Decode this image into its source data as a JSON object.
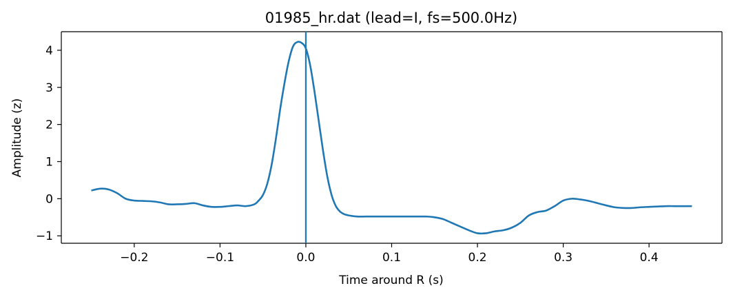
{
  "chart_data": {
    "type": "line",
    "title": "01985_hr.dat (lead=I, fs=500.0Hz)",
    "xlabel": "Time around R (s)",
    "ylabel": "Amplitude (z)",
    "xlim": [
      -0.285,
      0.485
    ],
    "ylim": [
      -1.2,
      4.5
    ],
    "x_ticks": [
      -0.2,
      -0.1,
      0.0,
      0.1,
      0.2,
      0.3,
      0.4
    ],
    "x_tick_labels": [
      "−0.2",
      "−0.1",
      "0.0",
      "0.1",
      "0.2",
      "0.3",
      "0.4"
    ],
    "y_ticks": [
      -1,
      0,
      1,
      2,
      3,
      4
    ],
    "y_tick_labels": [
      "−1",
      "0",
      "1",
      "2",
      "3",
      "4"
    ],
    "grid": false,
    "line_color": "#1f77b4",
    "vline_x": 0.0,
    "series": [
      {
        "x": [
          -0.25,
          -0.24,
          -0.23,
          -0.22,
          -0.21,
          -0.2,
          -0.19,
          -0.18,
          -0.17,
          -0.16,
          -0.15,
          -0.14,
          -0.13,
          -0.12,
          -0.11,
          -0.1,
          -0.09,
          -0.08,
          -0.07,
          -0.06,
          -0.055,
          -0.05,
          -0.045,
          -0.04,
          -0.035,
          -0.03,
          -0.025,
          -0.02,
          -0.015,
          -0.01,
          -0.005,
          0.0,
          0.005,
          0.01,
          0.015,
          0.02,
          0.025,
          0.03,
          0.035,
          0.04,
          0.045,
          0.05,
          0.06,
          0.07,
          0.08,
          0.09,
          0.1,
          0.11,
          0.12,
          0.13,
          0.14,
          0.15,
          0.16,
          0.17,
          0.18,
          0.19,
          0.2,
          0.21,
          0.22,
          0.23,
          0.24,
          0.25,
          0.26,
          0.27,
          0.28,
          0.29,
          0.3,
          0.31,
          0.32,
          0.33,
          0.34,
          0.35,
          0.36,
          0.37,
          0.38,
          0.39,
          0.4,
          0.41,
          0.42,
          0.43,
          0.44,
          0.45
        ],
        "y": [
          0.22,
          0.27,
          0.25,
          0.15,
          0.0,
          -0.05,
          -0.06,
          -0.07,
          -0.1,
          -0.15,
          -0.15,
          -0.14,
          -0.12,
          -0.18,
          -0.22,
          -0.22,
          -0.2,
          -0.18,
          -0.2,
          -0.15,
          -0.05,
          0.1,
          0.4,
          0.9,
          1.6,
          2.4,
          3.1,
          3.7,
          4.1,
          4.22,
          4.2,
          4.05,
          3.6,
          2.9,
          2.1,
          1.3,
          0.6,
          0.1,
          -0.2,
          -0.35,
          -0.42,
          -0.45,
          -0.48,
          -0.48,
          -0.48,
          -0.48,
          -0.48,
          -0.48,
          -0.48,
          -0.48,
          -0.48,
          -0.5,
          -0.55,
          -0.65,
          -0.75,
          -0.85,
          -0.93,
          -0.93,
          -0.88,
          -0.85,
          -0.78,
          -0.65,
          -0.45,
          -0.36,
          -0.32,
          -0.2,
          -0.05,
          0.0,
          -0.02,
          -0.06,
          -0.12,
          -0.18,
          -0.23,
          -0.25,
          -0.25,
          -0.23,
          -0.22,
          -0.21,
          -0.2,
          -0.2,
          -0.2,
          -0.2
        ]
      }
    ]
  }
}
